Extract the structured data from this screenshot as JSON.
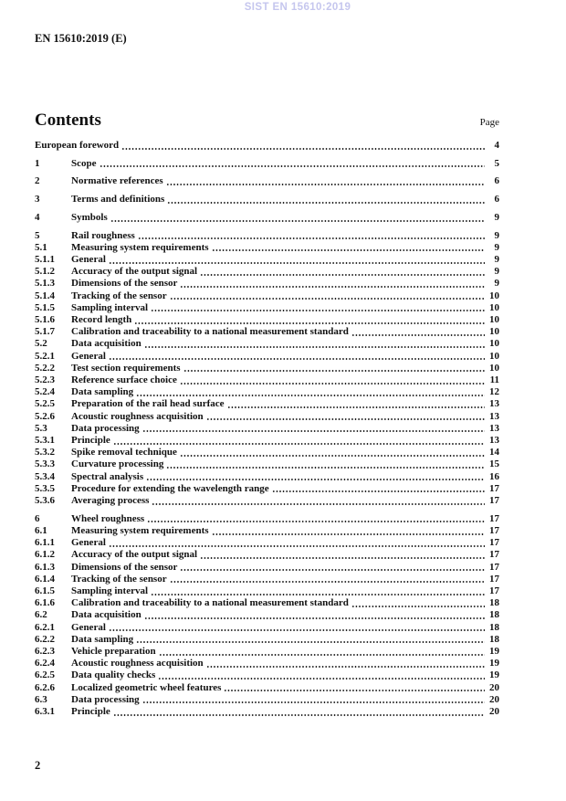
{
  "watermark": "SIST EN 15610:2019",
  "doc_ref": "EN 15610:2019 (E)",
  "toc": {
    "title": "Contents",
    "page_label": "Page",
    "entries": [
      {
        "num": "",
        "title": "European foreword",
        "page": "4"
      },
      {
        "num": "1",
        "title": "Scope",
        "page": "5"
      },
      {
        "num": "2",
        "title": "Normative references",
        "page": "6"
      },
      {
        "num": "3",
        "title": "Terms and definitions",
        "page": "6"
      },
      {
        "num": "4",
        "title": "Symbols",
        "page": "9"
      },
      {
        "num": "5",
        "title": "Rail roughness",
        "page": "9"
      },
      {
        "num": "5.1",
        "title": "Measuring system requirements",
        "page": "9"
      },
      {
        "num": "5.1.1",
        "title": "General",
        "page": "9"
      },
      {
        "num": "5.1.2",
        "title": "Accuracy of the output signal",
        "page": "9"
      },
      {
        "num": "5.1.3",
        "title": "Dimensions of the sensor",
        "page": "9"
      },
      {
        "num": "5.1.4",
        "title": "Tracking of the sensor",
        "page": "10"
      },
      {
        "num": "5.1.5",
        "title": "Sampling interval",
        "page": "10"
      },
      {
        "num": "5.1.6",
        "title": "Record length",
        "page": "10"
      },
      {
        "num": "5.1.7",
        "title": "Calibration and traceability to a national measurement standard",
        "page": "10"
      },
      {
        "num": "5.2",
        "title": "Data acquisition",
        "page": "10"
      },
      {
        "num": "5.2.1",
        "title": "General",
        "page": "10"
      },
      {
        "num": "5.2.2",
        "title": "Test section requirements",
        "page": "10"
      },
      {
        "num": "5.2.3",
        "title": "Reference surface choice",
        "page": "11"
      },
      {
        "num": "5.2.4",
        "title": "Data sampling",
        "page": "12"
      },
      {
        "num": "5.2.5",
        "title": "Preparation of the rail head surface",
        "page": "13"
      },
      {
        "num": "5.2.6",
        "title": "Acoustic roughness acquisition",
        "page": "13"
      },
      {
        "num": "5.3",
        "title": "Data processing",
        "page": "13"
      },
      {
        "num": "5.3.1",
        "title": "Principle",
        "page": "13"
      },
      {
        "num": "5.3.2",
        "title": "Spike removal technique",
        "page": "14"
      },
      {
        "num": "5.3.3",
        "title": "Curvature processing",
        "page": "15"
      },
      {
        "num": "5.3.4",
        "title": "Spectral analysis",
        "page": "16"
      },
      {
        "num": "5.3.5",
        "title": "Procedure for extending the wavelength range",
        "page": "17"
      },
      {
        "num": "5.3.6",
        "title": "Averaging process",
        "page": "17"
      },
      {
        "num": "6",
        "title": "Wheel roughness",
        "page": "17"
      },
      {
        "num": "6.1",
        "title": "Measuring system requirements",
        "page": "17"
      },
      {
        "num": "6.1.1",
        "title": "General",
        "page": "17"
      },
      {
        "num": "6.1.2",
        "title": "Accuracy of the output signal",
        "page": "17"
      },
      {
        "num": "6.1.3",
        "title": "Dimensions of the sensor",
        "page": "17"
      },
      {
        "num": "6.1.4",
        "title": "Tracking of the sensor",
        "page": "17"
      },
      {
        "num": "6.1.5",
        "title": "Sampling interval",
        "page": "17"
      },
      {
        "num": "6.1.6",
        "title": "Calibration and traceability to a national measurement standard",
        "page": "18"
      },
      {
        "num": "6.2",
        "title": "Data acquisition",
        "page": "18"
      },
      {
        "num": "6.2.1",
        "title": "General",
        "page": "18"
      },
      {
        "num": "6.2.2",
        "title": "Data sampling",
        "page": "18"
      },
      {
        "num": "6.2.3",
        "title": "Vehicle preparation",
        "page": "19"
      },
      {
        "num": "6.2.4",
        "title": "Acoustic roughness acquisition",
        "page": "19"
      },
      {
        "num": "6.2.5",
        "title": "Data quality checks",
        "page": "19"
      },
      {
        "num": "6.2.6",
        "title": "Localized geometric wheel features",
        "page": "20"
      },
      {
        "num": "6.3",
        "title": "Data processing",
        "page": "20"
      },
      {
        "num": "6.3.1",
        "title": "Principle",
        "page": "20"
      }
    ]
  },
  "footer": {
    "page_number": "2"
  },
  "colors": {
    "watermark": "#c5c6ee",
    "text": "#111111"
  }
}
